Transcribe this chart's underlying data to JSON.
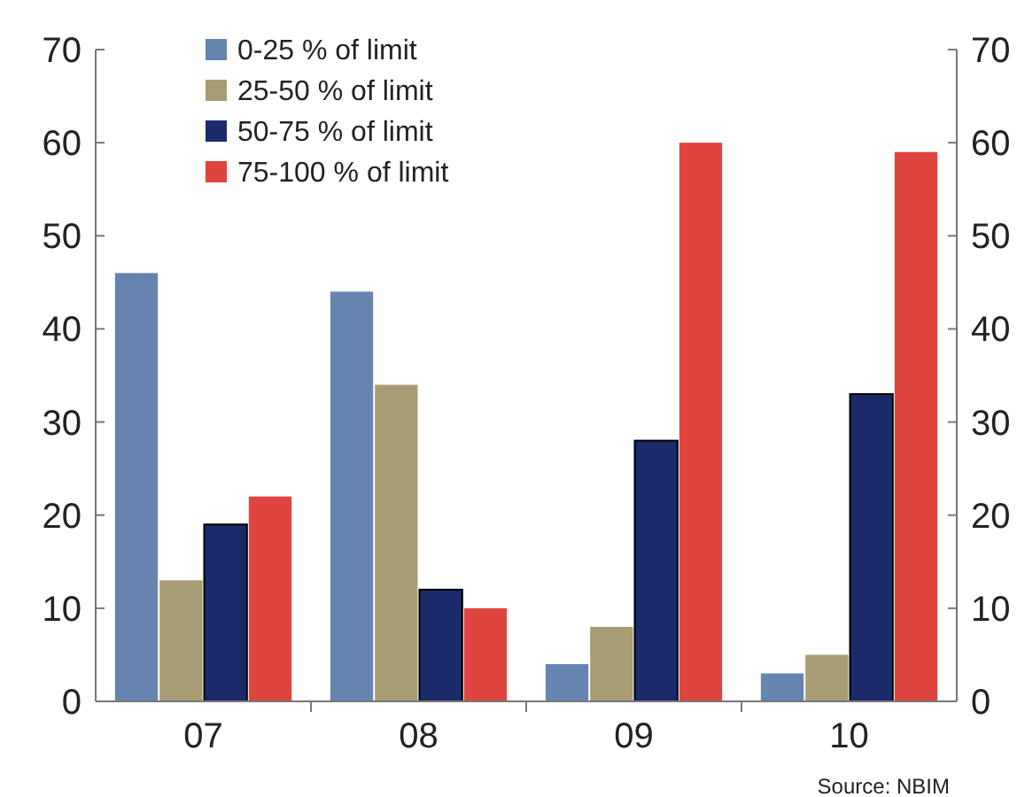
{
  "chart_data": {
    "type": "bar",
    "categories": [
      "07",
      "08",
      "09",
      "10"
    ],
    "series": [
      {
        "name": "0-25 % of limit",
        "color": "#6585b0",
        "values": [
          46,
          44,
          4,
          3
        ]
      },
      {
        "name": "25-50 % of limit",
        "color": "#a89c74",
        "values": [
          13,
          34,
          8,
          5
        ]
      },
      {
        "name": "50-75 % of limit",
        "color": "#1b2a6b",
        "values": [
          19,
          12,
          28,
          33
        ]
      },
      {
        "name": "75-100 % of limit",
        "color": "#e0443e",
        "values": [
          22,
          10,
          60,
          59
        ]
      }
    ],
    "ylim": [
      0,
      70
    ],
    "yticks": [
      0,
      10,
      20,
      30,
      40,
      50,
      60,
      70
    ],
    "y2lim": [
      0,
      70
    ],
    "y2ticks": [
      0,
      10,
      20,
      30,
      40,
      50,
      60,
      70
    ],
    "legend": "top left",
    "grid": false,
    "annotations": [
      "Source: NBIM"
    ]
  }
}
